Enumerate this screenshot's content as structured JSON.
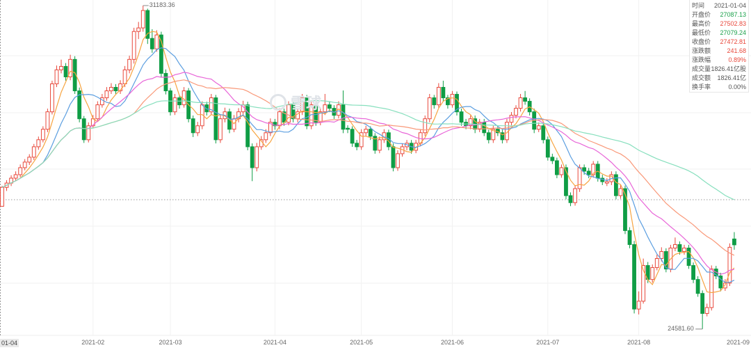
{
  "info_panel": {
    "rows": [
      {
        "label": "时间",
        "value": "2021-01-04",
        "tone": ""
      },
      {
        "label": "开盘价",
        "value": "27087.13",
        "tone": "down"
      },
      {
        "label": "最高价",
        "value": "27502.83",
        "tone": "up"
      },
      {
        "label": "最低价",
        "value": "27079.24",
        "tone": "down"
      },
      {
        "label": "收盘价",
        "value": "27472.81",
        "tone": "up"
      },
      {
        "label": "涨跌额",
        "value": "241.68",
        "tone": "up"
      },
      {
        "label": "涨跌幅",
        "value": "0.89%",
        "tone": "up"
      },
      {
        "label": "成交量",
        "value": "1826.41亿股",
        "tone": ""
      },
      {
        "label": "成交额",
        "value": "1826.41亿",
        "tone": ""
      },
      {
        "label": "换手率",
        "value": "0.00%",
        "tone": ""
      }
    ]
  },
  "watermark": "雪球",
  "colors": {
    "up": "#e8473a",
    "down": "#0f9d45",
    "ma5": "#f7a440",
    "ma10": "#5b9ee0",
    "ma20": "#e865d8",
    "ma30": "#f99878",
    "ma60": "#86dfbd",
    "grid": "#f2f2f2"
  },
  "chart_data": {
    "type": "candlestick",
    "ylim": [
      24452,
      31297
    ],
    "grid": true,
    "moving_averages": [
      5,
      10,
      20,
      30,
      60
    ],
    "annotations": {
      "max": "31183.36",
      "min": "24581.60"
    },
    "x_ticks": [
      {
        "index": 0,
        "label": "01-04"
      },
      {
        "index": 20,
        "label": "2021-02"
      },
      {
        "index": 37,
        "label": "2021-03"
      },
      {
        "index": 60,
        "label": "2021-04"
      },
      {
        "index": 79,
        "label": "2021-05"
      },
      {
        "index": 99,
        "label": "2021-06"
      },
      {
        "index": 120,
        "label": "2021-07"
      },
      {
        "index": 140,
        "label": "2021-08"
      },
      {
        "index": 162,
        "label": "2021-09"
      }
    ],
    "ohlc": [
      [
        27087.13,
        27502.83,
        27079.24,
        27472.81
      ],
      [
        27473,
        27620,
        27400,
        27561
      ],
      [
        27561,
        27720,
        27500,
        27661
      ],
      [
        27661,
        27800,
        27600,
        27732
      ],
      [
        27732,
        27940,
        27680,
        27875
      ],
      [
        27875,
        28050,
        27820,
        27989
      ],
      [
        27989,
        28150,
        27930,
        28089
      ],
      [
        28089,
        28360,
        28030,
        28302
      ],
      [
        28302,
        28510,
        28240,
        28445
      ],
      [
        28445,
        28720,
        28390,
        28659
      ],
      [
        28659,
        29080,
        28600,
        29015
      ],
      [
        29015,
        29650,
        28960,
        29586
      ],
      [
        29586,
        29960,
        29520,
        29871
      ],
      [
        29871,
        30080,
        29800,
        29942
      ],
      [
        29942,
        30010,
        29650,
        29728
      ],
      [
        29728,
        30180,
        29660,
        30085
      ],
      [
        30085,
        30150,
        29380,
        29443
      ],
      [
        29443,
        29510,
        28800,
        28873
      ],
      [
        28873,
        28930,
        28380,
        28445
      ],
      [
        28445,
        28800,
        28390,
        28730
      ],
      [
        28730,
        28950,
        28680,
        28873
      ],
      [
        28873,
        29230,
        28820,
        29158
      ],
      [
        29158,
        29380,
        29100,
        29301
      ],
      [
        29301,
        29520,
        29240,
        29443
      ],
      [
        29443,
        29600,
        29380,
        29515
      ],
      [
        29515,
        29580,
        29370,
        29443
      ],
      [
        29443,
        29660,
        29380,
        29586
      ],
      [
        29586,
        29950,
        29520,
        29871
      ],
      [
        29871,
        30160,
        29800,
        30085
      ],
      [
        30085,
        30730,
        30000,
        30655
      ],
      [
        30655,
        30850,
        30500,
        30727
      ],
      [
        30727,
        31183.36,
        30650,
        31083
      ],
      [
        31083,
        31120,
        30400,
        30513
      ],
      [
        30513,
        30700,
        30220,
        30299
      ],
      [
        30299,
        30680,
        30240,
        30584
      ],
      [
        30584,
        30650,
        29720,
        29800
      ],
      [
        29800,
        29880,
        29370,
        29443
      ],
      [
        29443,
        29500,
        28940,
        29015
      ],
      [
        29015,
        29380,
        28950,
        29301
      ],
      [
        29301,
        29360,
        29080,
        29158
      ],
      [
        29158,
        29520,
        29100,
        29443
      ],
      [
        29443,
        29500,
        28800,
        28873
      ],
      [
        28873,
        28940,
        28500,
        28588
      ],
      [
        28588,
        28810,
        28520,
        28730
      ],
      [
        28730,
        29230,
        28660,
        29158
      ],
      [
        29158,
        29220,
        28940,
        29015
      ],
      [
        29015,
        29380,
        28960,
        29301
      ],
      [
        29301,
        29360,
        28370,
        28445
      ],
      [
        28445,
        28950,
        28380,
        28873
      ],
      [
        28873,
        29100,
        28800,
        29015
      ],
      [
        29015,
        29080,
        28580,
        28659
      ],
      [
        28659,
        28950,
        28600,
        28873
      ],
      [
        28873,
        29090,
        28800,
        29015
      ],
      [
        29015,
        29240,
        28950,
        29158
      ],
      [
        29158,
        29220,
        28230,
        28302
      ],
      [
        28302,
        28370,
        27600,
        27875
      ],
      [
        27875,
        28380,
        27800,
        28302
      ],
      [
        28302,
        28520,
        28240,
        28445
      ],
      [
        28445,
        28660,
        28380,
        28588
      ],
      [
        28588,
        28880,
        28520,
        28802
      ],
      [
        28802,
        28870,
        28650,
        28730
      ],
      [
        28730,
        29090,
        28660,
        29015
      ],
      [
        29015,
        29080,
        28730,
        28802
      ],
      [
        28802,
        29230,
        28740,
        29158
      ],
      [
        29158,
        29220,
        28800,
        28873
      ],
      [
        28873,
        29090,
        28800,
        29015
      ],
      [
        29015,
        29380,
        28950,
        29301
      ],
      [
        29301,
        29360,
        28660,
        28730
      ],
      [
        28730,
        29230,
        28660,
        29158
      ],
      [
        29158,
        29220,
        28730,
        28802
      ],
      [
        28802,
        29090,
        28740,
        29015
      ],
      [
        29015,
        29380,
        28950,
        29158
      ],
      [
        29158,
        29220,
        29010,
        29087
      ],
      [
        29087,
        29150,
        28870,
        28944
      ],
      [
        28944,
        29230,
        28880,
        29158
      ],
      [
        29158,
        29450,
        28580,
        28659
      ],
      [
        28680,
        28740,
        28580,
        28659
      ],
      [
        28659,
        28720,
        28300,
        28374
      ],
      [
        28374,
        28440,
        28230,
        28302
      ],
      [
        28302,
        28660,
        28240,
        28588
      ],
      [
        28588,
        28730,
        28520,
        28659
      ],
      [
        28659,
        28720,
        28440,
        28516
      ],
      [
        28516,
        28580,
        28160,
        28231
      ],
      [
        28231,
        28510,
        28170,
        28445
      ],
      [
        28445,
        28660,
        28380,
        28588
      ],
      [
        28588,
        28650,
        28230,
        28302
      ],
      [
        28302,
        28370,
        27800,
        27875
      ],
      [
        27875,
        28230,
        27810,
        28160
      ],
      [
        28160,
        28370,
        28100,
        28302
      ],
      [
        28302,
        28440,
        28230,
        28374
      ],
      [
        28374,
        28440,
        28160,
        28231
      ],
      [
        28231,
        28440,
        28170,
        28374
      ],
      [
        28374,
        28660,
        28310,
        28588
      ],
      [
        28588,
        28940,
        28520,
        28873
      ],
      [
        28873,
        29380,
        28800,
        29301
      ],
      [
        29301,
        29360,
        29080,
        29158
      ],
      [
        29158,
        29600,
        29100,
        29515
      ],
      [
        29515,
        29650,
        29230,
        29301
      ],
      [
        29301,
        29360,
        29080,
        29158
      ],
      [
        29158,
        29440,
        29100,
        29372
      ],
      [
        29372,
        29430,
        28940,
        29015
      ],
      [
        29015,
        29080,
        28730,
        28802
      ],
      [
        28802,
        28870,
        28660,
        28730
      ],
      [
        28730,
        28940,
        28660,
        28873
      ],
      [
        28873,
        28940,
        28580,
        28659
      ],
      [
        28659,
        28870,
        28600,
        28802
      ],
      [
        28802,
        28870,
        28520,
        28588
      ],
      [
        28588,
        28650,
        28370,
        28445
      ],
      [
        28445,
        28730,
        28380,
        28659
      ],
      [
        28659,
        28720,
        28520,
        28588
      ],
      [
        28588,
        28650,
        28370,
        28445
      ],
      [
        28445,
        28870,
        28380,
        28802
      ],
      [
        28802,
        29010,
        28740,
        28944
      ],
      [
        28944,
        29150,
        28880,
        29087
      ],
      [
        29087,
        29380,
        29020,
        29301
      ],
      [
        29301,
        29440,
        29160,
        29230
      ],
      [
        29230,
        29290,
        28940,
        29015
      ],
      [
        29015,
        29080,
        28580,
        28659
      ],
      [
        28659,
        28800,
        28600,
        28730
      ],
      [
        28730,
        28800,
        28370,
        28445
      ],
      [
        28445,
        28510,
        28020,
        28089
      ],
      [
        28089,
        28160,
        27950,
        28017
      ],
      [
        28017,
        28080,
        27660,
        27732
      ],
      [
        27732,
        27940,
        27670,
        27875
      ],
      [
        27875,
        27940,
        27230,
        27304
      ],
      [
        27304,
        27370,
        27090,
        27161
      ],
      [
        27161,
        27520,
        27100,
        27447
      ],
      [
        27447,
        27940,
        27380,
        27875
      ],
      [
        27875,
        27940,
        27730,
        27804
      ],
      [
        27804,
        27870,
        27660,
        27732
      ],
      [
        27732,
        28010,
        27670,
        27946
      ],
      [
        27946,
        28010,
        27590,
        27660
      ],
      [
        27660,
        27730,
        27520,
        27589
      ],
      [
        27560,
        27660,
        27500,
        27589
      ],
      [
        27589,
        27800,
        27520,
        27732
      ],
      [
        27732,
        27800,
        27230,
        27304
      ],
      [
        27304,
        27520,
        27240,
        27447
      ],
      [
        27447,
        27510,
        26520,
        26591
      ],
      [
        26591,
        26660,
        26230,
        26306
      ],
      [
        26306,
        26380,
        24900,
        24990
      ],
      [
        24990,
        25350,
        24880,
        25150
      ],
      [
        25150,
        26020,
        25100,
        25878
      ],
      [
        25878,
        25950,
        25520,
        25593
      ],
      [
        25593,
        25900,
        25530,
        25836
      ],
      [
        25836,
        26100,
        25780,
        26021
      ],
      [
        26021,
        26250,
        25960,
        26164
      ],
      [
        26164,
        26230,
        25740,
        25807
      ],
      [
        25807,
        26300,
        25740,
        26235
      ],
      [
        26235,
        26450,
        26170,
        26306
      ],
      [
        26306,
        26370,
        26100,
        26164
      ],
      [
        26164,
        26300,
        26100,
        26235
      ],
      [
        26235,
        26300,
        25810,
        25878
      ],
      [
        25878,
        25940,
        25520,
        25593
      ],
      [
        25593,
        25660,
        25240,
        25308
      ],
      [
        25308,
        25370,
        24581.6,
        24900
      ],
      [
        24900,
        25100,
        24840,
        25020
      ],
      [
        25020,
        25880,
        24960,
        25807
      ],
      [
        25807,
        25870,
        25600,
        25665
      ],
      [
        25665,
        25730,
        25350,
        25420
      ],
      [
        25420,
        25600,
        25360,
        25520
      ],
      [
        25520,
        26330,
        25460,
        26250
      ],
      [
        26420,
        26560,
        26200,
        26300
      ]
    ]
  }
}
